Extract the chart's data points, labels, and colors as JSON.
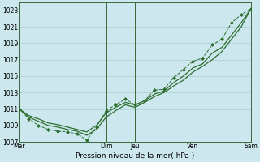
{
  "xlabel": "Pression niveau de la mer( hPa )",
  "bg_color": "#cce8ee",
  "grid_color": "#aacccc",
  "line_color": "#2d6e2d",
  "ylim": [
    1007,
    1024
  ],
  "yticks": [
    1007,
    1009,
    1011,
    1013,
    1015,
    1017,
    1019,
    1021,
    1023
  ],
  "day_labels": [
    "Mer",
    "Dim",
    "Jeu",
    "Ven",
    "Sam"
  ],
  "day_positions": [
    0,
    9,
    12,
    18,
    24
  ],
  "series1_x": [
    0,
    1,
    2,
    3,
    4,
    5,
    6,
    7,
    8,
    9,
    10,
    11,
    12,
    13,
    14,
    15,
    16,
    17,
    18,
    19,
    20,
    21,
    22,
    23,
    24
  ],
  "series1_y": [
    1011.0,
    1009.8,
    1009.0,
    1008.5,
    1008.3,
    1008.2,
    1008.0,
    1007.2,
    1008.8,
    1010.8,
    1011.5,
    1012.2,
    1011.5,
    1012.0,
    1013.3,
    1013.4,
    1014.8,
    1015.8,
    1016.8,
    1017.2,
    1018.8,
    1019.5,
    1021.5,
    1022.5,
    1023.2
  ],
  "series2_x": [
    0,
    1,
    2,
    3,
    4,
    5,
    6,
    7,
    8,
    9,
    10,
    11,
    12,
    13,
    14,
    15,
    16,
    17,
    18,
    19,
    20,
    21,
    22,
    23,
    24
  ],
  "series2_y": [
    1011.0,
    1010.2,
    1009.8,
    1009.3,
    1009.1,
    1008.8,
    1008.5,
    1008.2,
    1009.0,
    1010.5,
    1011.2,
    1011.8,
    1011.5,
    1012.0,
    1012.8,
    1013.2,
    1014.2,
    1015.0,
    1016.0,
    1016.5,
    1017.8,
    1018.5,
    1020.0,
    1021.5,
    1023.2
  ],
  "series3_x": [
    0,
    1,
    2,
    3,
    4,
    5,
    6,
    7,
    8,
    9,
    10,
    11,
    12,
    13,
    14,
    15,
    16,
    17,
    18,
    19,
    20,
    21,
    22,
    23,
    24
  ],
  "series3_y": [
    1011.0,
    1010.0,
    1009.5,
    1009.0,
    1008.8,
    1008.5,
    1008.3,
    1007.8,
    1008.5,
    1010.0,
    1010.8,
    1011.5,
    1011.2,
    1011.8,
    1012.5,
    1013.0,
    1013.8,
    1014.5,
    1015.5,
    1016.2,
    1017.0,
    1018.0,
    1019.5,
    1021.0,
    1023.2
  ]
}
